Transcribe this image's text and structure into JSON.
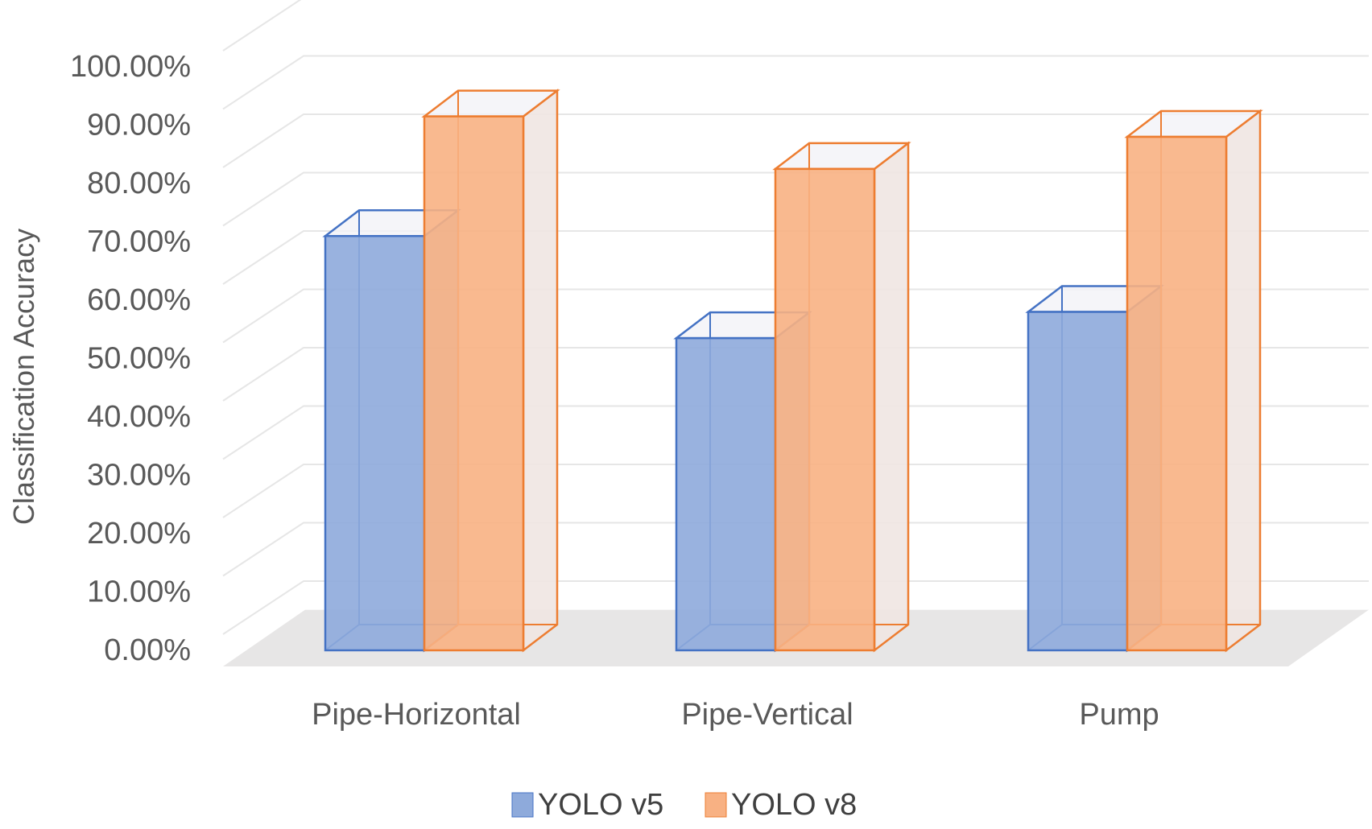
{
  "chart_data": {
    "type": "bar",
    "style": "3d-clustered-column",
    "title": "",
    "xlabel": "",
    "ylabel": "Classification Accuracy",
    "categories": [
      "Pipe-Horizontal",
      "Pipe-Vertical",
      "Pump"
    ],
    "series": [
      {
        "name": "YOLO v5",
        "values": [
          0.71,
          0.535,
          0.58
        ],
        "color": "#4472C4",
        "fill": "#8EAADB"
      },
      {
        "name": "YOLO v8",
        "values": [
          0.915,
          0.825,
          0.88
        ],
        "color": "#ED7D31",
        "fill": "#F8B183"
      }
    ],
    "ylim": [
      0,
      1.0
    ],
    "yticks": [
      0,
      0.1,
      0.2,
      0.3,
      0.4,
      0.5,
      0.6,
      0.7,
      0.8,
      0.9,
      1.0
    ],
    "ytick_labels": [
      "0.00%",
      "10.00%",
      "20.00%",
      "30.00%",
      "40.00%",
      "50.00%",
      "60.00%",
      "70.00%",
      "80.00%",
      "90.00%",
      "100.00%"
    ],
    "grid": true,
    "legend_position": "bottom",
    "floor_color": "#E7E6E6",
    "gridline_color": "#E6E6E6"
  }
}
